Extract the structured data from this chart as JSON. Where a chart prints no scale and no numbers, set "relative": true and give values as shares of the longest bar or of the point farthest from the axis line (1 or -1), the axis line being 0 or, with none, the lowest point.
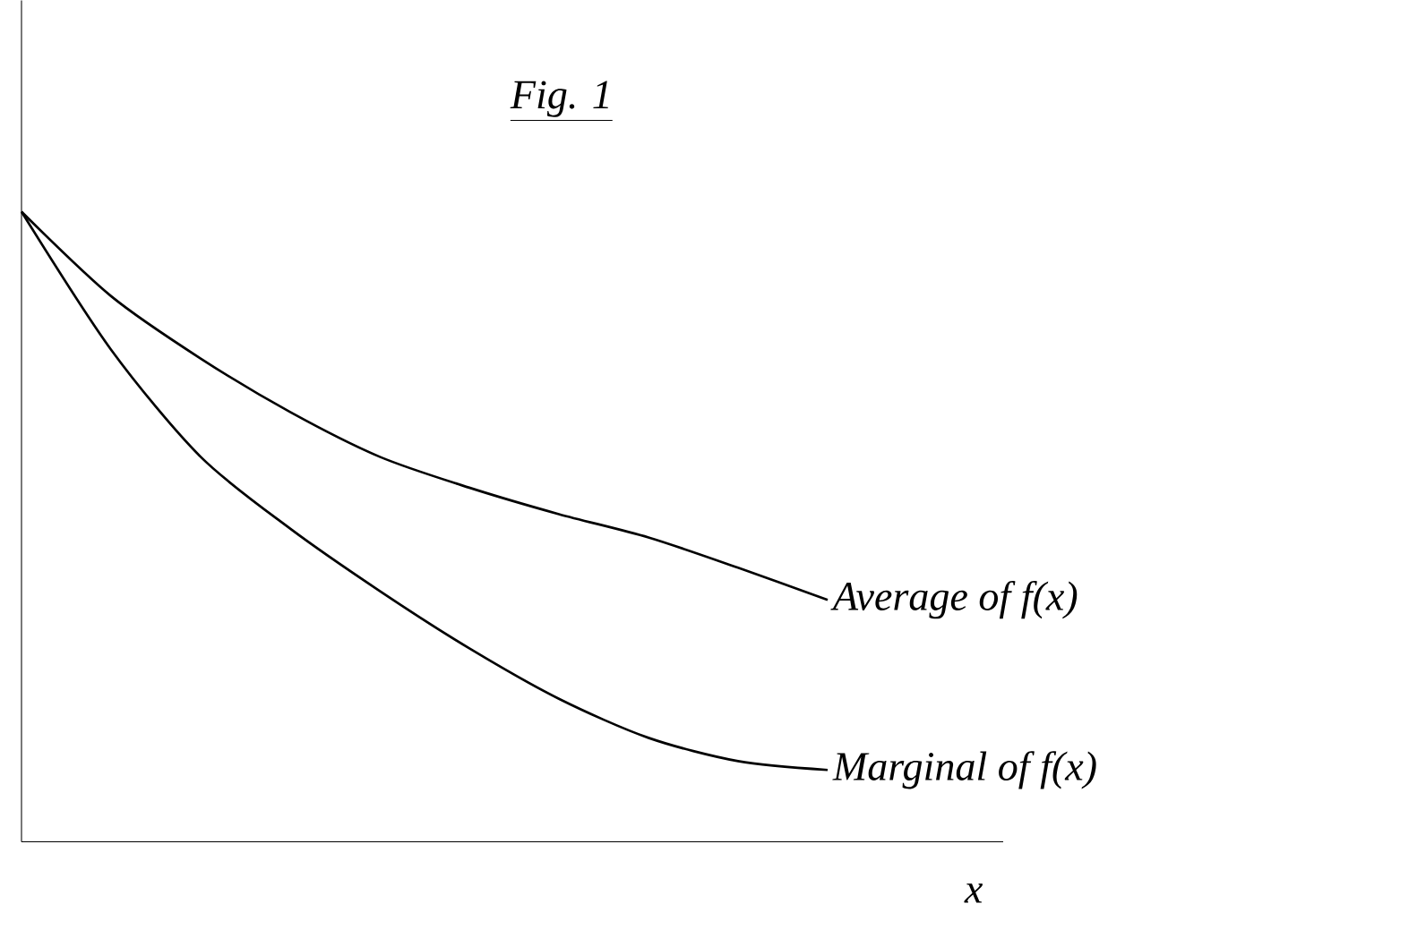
{
  "chart_data": {
    "type": "line",
    "title": "Fig. 1",
    "xlabel": "x",
    "relative": true,
    "categories": [
      null,
      null,
      null,
      null,
      null,
      null,
      null,
      null,
      null,
      null
    ],
    "series": [
      {
        "name": "Average of f(x)",
        "color": "#000000",
        "values": [
          1,
          0.866,
          0.767,
          0.682,
          0.611,
          0.562,
          0.52,
          0.483,
          0.435,
          0.384
        ]
      },
      {
        "name": "Marginal of f(x)",
        "color": "#000000",
        "values": [
          1,
          0.781,
          0.611,
          0.497,
          0.398,
          0.307,
          0.227,
          0.165,
          0.128,
          0.114
        ]
      }
    ]
  }
}
